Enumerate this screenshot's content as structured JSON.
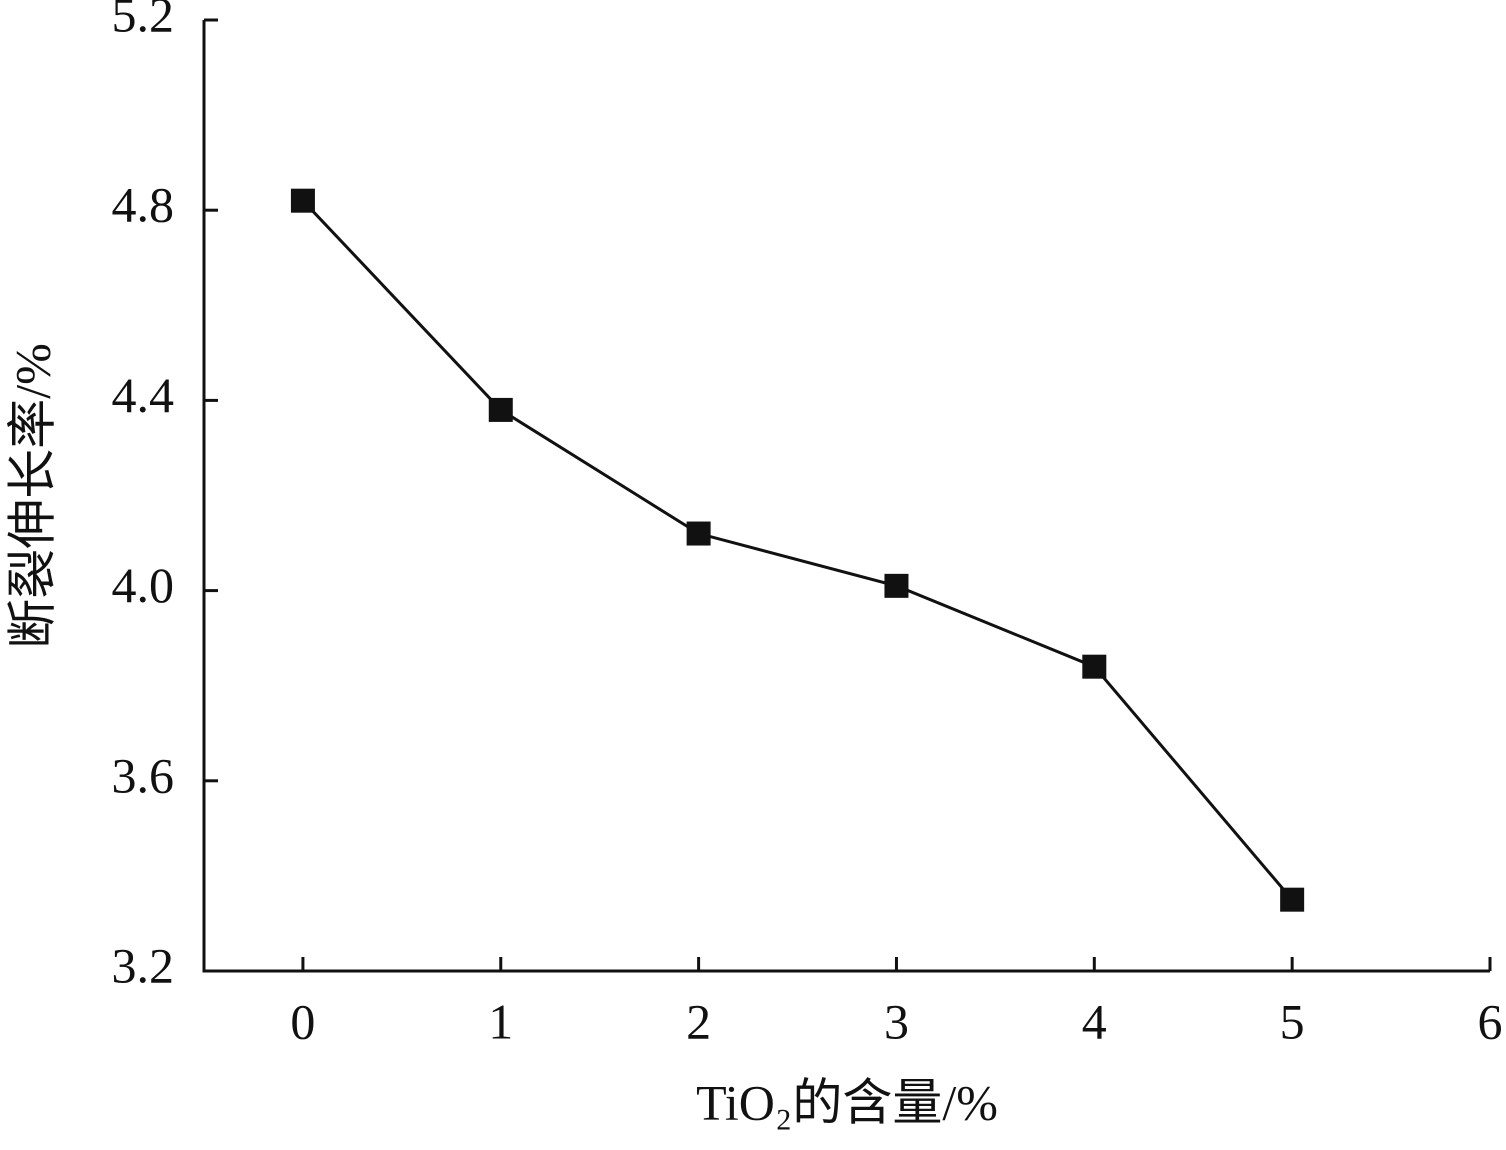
{
  "chart_data": {
    "type": "line",
    "x_label": "TiO₂的含量/%",
    "y_label": "断裂伸长率/%",
    "x": [
      0,
      1,
      2,
      3,
      4,
      5
    ],
    "series": [
      {
        "color": "#111111",
        "values": [
          4.82,
          4.38,
          4.12,
          4.01,
          3.84,
          3.35
        ]
      }
    ],
    "xlim": [
      -0.5,
      6
    ],
    "xticks": [
      0,
      1,
      2,
      3,
      4,
      5,
      6
    ],
    "ylim": [
      3.2,
      5.2
    ],
    "yticks": [
      3.2,
      3.6,
      {
        "value": 4,
        "label": "4.0"
      },
      4.4,
      4.8,
      5.2
    ],
    "grid": false
  }
}
